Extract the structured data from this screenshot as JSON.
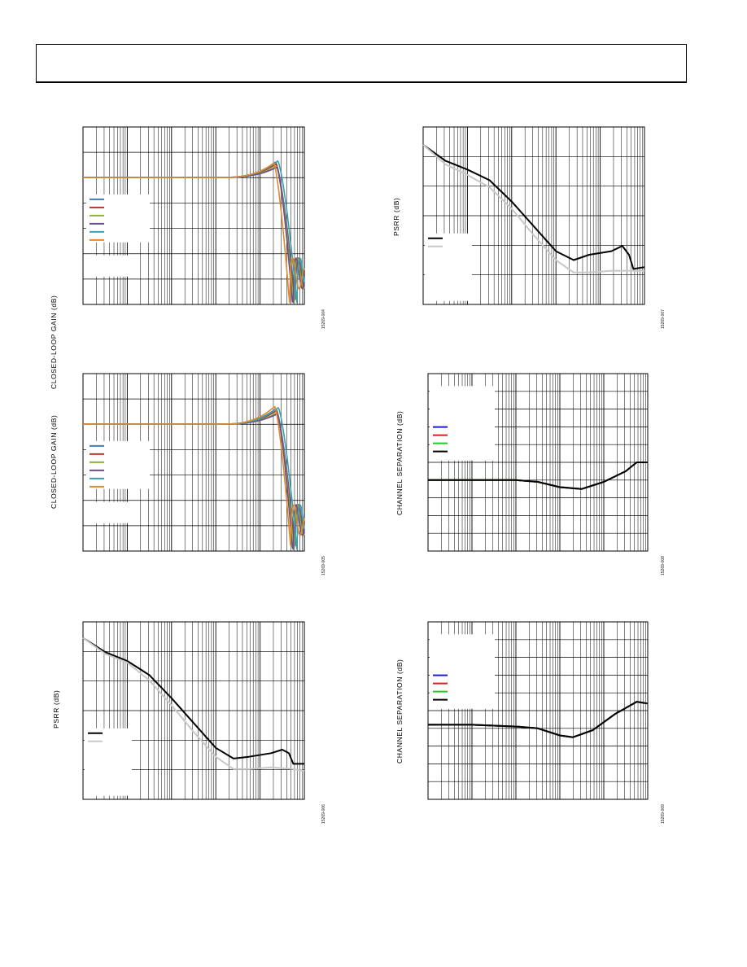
{
  "page": {
    "header": ""
  },
  "colors": {
    "blue": "#3f7bb5",
    "red": "#b23a2e",
    "green": "#8fb03a",
    "purple": "#6b4e8f",
    "teal": "#3aa0b3",
    "orange": "#e08a2c",
    "ch_blue": "#1a1adb",
    "ch_red": "#d81f1f",
    "ch_green": "#27c727",
    "black": "#000000",
    "gray": "#c8c8c8"
  },
  "chart_data": [
    {
      "id": "fig4",
      "type": "line",
      "ylabel": "CLOSED-LOOP GAIN (dB)",
      "figure_number": "15269-004",
      "x_scale": "log",
      "x_decades": 5,
      "y_divisions": 7,
      "grid": true,
      "legend": "left-middle",
      "series": [
        {
          "color_key": "blue",
          "peak_x": 0.87,
          "peak_y": 0.8,
          "dip_x": 0.962
        },
        {
          "color_key": "red",
          "peak_x": 0.872,
          "peak_y": 0.6,
          "dip_x": 0.958
        },
        {
          "color_key": "green",
          "peak_x": 0.874,
          "peak_y": 0.4,
          "dip_x": 0.955
        },
        {
          "color_key": "purple",
          "peak_x": 0.876,
          "peak_y": 0.3,
          "dip_x": 0.95
        },
        {
          "color_key": "teal",
          "peak_x": 0.88,
          "peak_y": 0.9,
          "dip_x": 0.968
        },
        {
          "color_key": "orange",
          "peak_x": 0.862,
          "peak_y": 0.7,
          "dip_x": 0.935
        }
      ]
    },
    {
      "id": "fig5",
      "type": "line",
      "ylabel": "CLOSED-LOOP GAIN (dB)",
      "figure_number": "15269-005",
      "x_scale": "log",
      "x_decades": 5,
      "y_divisions": 7,
      "grid": true,
      "legend": "left-middle",
      "series": [
        {
          "color_key": "blue",
          "peak_x": 0.872,
          "peak_y": 0.8,
          "dip_x": 0.962
        },
        {
          "color_key": "red",
          "peak_x": 0.874,
          "peak_y": 0.6,
          "dip_x": 0.958
        },
        {
          "color_key": "green",
          "peak_x": 0.876,
          "peak_y": 0.4,
          "dip_x": 0.955
        },
        {
          "color_key": "purple",
          "peak_x": 0.878,
          "peak_y": 0.3,
          "dip_x": 0.95
        },
        {
          "color_key": "teal",
          "peak_x": 0.882,
          "peak_y": 0.9,
          "dip_x": 0.968
        },
        {
          "color_key": "orange",
          "peak_x": 0.866,
          "peak_y": 1.0,
          "dip_x": 0.94
        }
      ]
    },
    {
      "id": "fig6",
      "type": "line",
      "ylabel": "PSRR (dB)",
      "figure_number": "15269-006",
      "x_scale": "log",
      "x_decades": 5,
      "y_divisions": 6,
      "grid": true,
      "legend": "left-lower",
      "series": [
        {
          "color_key": "black",
          "points": [
            [
              0,
              0.09
            ],
            [
              0.1,
              0.17
            ],
            [
              0.2,
              0.22
            ],
            [
              0.3,
              0.3
            ],
            [
              0.4,
              0.43
            ],
            [
              0.5,
              0.57
            ],
            [
              0.6,
              0.71
            ],
            [
              0.68,
              0.77
            ],
            [
              0.75,
              0.76
            ],
            [
              0.85,
              0.74
            ],
            [
              0.9,
              0.72
            ],
            [
              0.93,
              0.74
            ],
            [
              0.95,
              0.8
            ],
            [
              1,
              0.8
            ]
          ]
        },
        {
          "color_key": "gray",
          "points": [
            [
              0,
              0.09
            ],
            [
              0.1,
              0.18
            ],
            [
              0.2,
              0.23
            ],
            [
              0.3,
              0.33
            ],
            [
              0.4,
              0.47
            ],
            [
              0.5,
              0.62
            ],
            [
              0.6,
              0.76
            ],
            [
              0.68,
              0.83
            ],
            [
              0.75,
              0.83
            ],
            [
              0.85,
              0.82
            ],
            [
              0.95,
              0.83
            ],
            [
              1,
              0.84
            ]
          ]
        }
      ]
    },
    {
      "id": "fig7",
      "type": "line",
      "ylabel": "PSRR (dB)",
      "figure_number": "15269-007",
      "x_scale": "log",
      "x_decades": 5,
      "y_divisions": 6,
      "grid": true,
      "legend": "left-lower",
      "series": [
        {
          "color_key": "black",
          "points": [
            [
              0,
              0.1
            ],
            [
              0.1,
              0.19
            ],
            [
              0.2,
              0.24
            ],
            [
              0.3,
              0.3
            ],
            [
              0.4,
              0.42
            ],
            [
              0.5,
              0.56
            ],
            [
              0.6,
              0.7
            ],
            [
              0.68,
              0.75
            ],
            [
              0.75,
              0.72
            ],
            [
              0.85,
              0.7
            ],
            [
              0.9,
              0.67
            ],
            [
              0.93,
              0.72
            ],
            [
              0.95,
              0.8
            ],
            [
              1,
              0.79
            ]
          ]
        },
        {
          "color_key": "gray",
          "points": [
            [
              0,
              0.1
            ],
            [
              0.1,
              0.21
            ],
            [
              0.2,
              0.27
            ],
            [
              0.3,
              0.34
            ],
            [
              0.4,
              0.46
            ],
            [
              0.5,
              0.61
            ],
            [
              0.6,
              0.75
            ],
            [
              0.68,
              0.82
            ],
            [
              0.75,
              0.82
            ],
            [
              0.85,
              0.81
            ],
            [
              0.95,
              0.81
            ],
            [
              1,
              0.81
            ]
          ]
        }
      ]
    },
    {
      "id": "fig8",
      "type": "line",
      "ylabel": "CHANNEL SEPARATION (dB)",
      "figure_number": "15269-008",
      "x_scale": "log",
      "x_decades": 5,
      "y_divisions": 10,
      "grid": true,
      "legend": "left-upper",
      "series": [
        {
          "color_key": "ch_blue",
          "points": [
            [
              0,
              0.6
            ],
            [
              0.2,
              0.6
            ],
            [
              0.4,
              0.6
            ],
            [
              0.5,
              0.61
            ],
            [
              0.6,
              0.64
            ],
            [
              0.7,
              0.65
            ],
            [
              0.8,
              0.61
            ],
            [
              0.9,
              0.55
            ],
            [
              0.95,
              0.5
            ],
            [
              1,
              0.5
            ]
          ]
        },
        {
          "color_key": "ch_red",
          "points": [
            [
              0,
              0.6
            ],
            [
              0.2,
              0.6
            ],
            [
              0.4,
              0.6
            ],
            [
              0.5,
              0.61
            ],
            [
              0.6,
              0.64
            ],
            [
              0.7,
              0.65
            ],
            [
              0.8,
              0.61
            ],
            [
              0.9,
              0.55
            ],
            [
              0.95,
              0.5
            ],
            [
              1,
              0.5
            ]
          ]
        },
        {
          "color_key": "ch_green",
          "points": [
            [
              0,
              0.6
            ],
            [
              0.2,
              0.6
            ],
            [
              0.4,
              0.6
            ],
            [
              0.5,
              0.61
            ],
            [
              0.6,
              0.64
            ],
            [
              0.7,
              0.65
            ],
            [
              0.8,
              0.61
            ],
            [
              0.9,
              0.55
            ],
            [
              0.95,
              0.5
            ],
            [
              1,
              0.5
            ]
          ]
        },
        {
          "color_key": "black",
          "points": [
            [
              0,
              0.6
            ],
            [
              0.2,
              0.6
            ],
            [
              0.4,
              0.6
            ],
            [
              0.5,
              0.61
            ],
            [
              0.6,
              0.64
            ],
            [
              0.7,
              0.65
            ],
            [
              0.8,
              0.61
            ],
            [
              0.9,
              0.55
            ],
            [
              0.95,
              0.5
            ],
            [
              1,
              0.5
            ]
          ]
        }
      ]
    },
    {
      "id": "fig9",
      "type": "line",
      "ylabel": "CHANNEL SEPARATION (dB)",
      "figure_number": "15269-009",
      "x_scale": "log",
      "x_decades": 5,
      "y_divisions": 10,
      "grid": true,
      "legend": "left-upper",
      "series": [
        {
          "color_key": "ch_blue",
          "points": [
            [
              0,
              0.58
            ],
            [
              0.2,
              0.58
            ],
            [
              0.4,
              0.59
            ],
            [
              0.5,
              0.6
            ],
            [
              0.6,
              0.64
            ],
            [
              0.66,
              0.65
            ],
            [
              0.75,
              0.61
            ],
            [
              0.85,
              0.52
            ],
            [
              0.95,
              0.45
            ],
            [
              1,
              0.46
            ]
          ]
        },
        {
          "color_key": "ch_red",
          "points": [
            [
              0,
              0.58
            ],
            [
              0.2,
              0.58
            ],
            [
              0.4,
              0.59
            ],
            [
              0.5,
              0.6
            ],
            [
              0.6,
              0.64
            ],
            [
              0.66,
              0.65
            ],
            [
              0.75,
              0.61
            ],
            [
              0.85,
              0.52
            ],
            [
              0.95,
              0.45
            ],
            [
              1,
              0.46
            ]
          ]
        },
        {
          "color_key": "ch_green",
          "points": [
            [
              0,
              0.58
            ],
            [
              0.2,
              0.58
            ],
            [
              0.4,
              0.59
            ],
            [
              0.5,
              0.6
            ],
            [
              0.6,
              0.64
            ],
            [
              0.66,
              0.65
            ],
            [
              0.75,
              0.61
            ],
            [
              0.85,
              0.52
            ],
            [
              0.95,
              0.45
            ],
            [
              1,
              0.46
            ]
          ]
        },
        {
          "color_key": "black",
          "points": [
            [
              0,
              0.58
            ],
            [
              0.2,
              0.58
            ],
            [
              0.4,
              0.59
            ],
            [
              0.5,
              0.6
            ],
            [
              0.6,
              0.64
            ],
            [
              0.66,
              0.65
            ],
            [
              0.75,
              0.61
            ],
            [
              0.85,
              0.52
            ],
            [
              0.95,
              0.45
            ],
            [
              1,
              0.46
            ]
          ]
        }
      ]
    }
  ]
}
